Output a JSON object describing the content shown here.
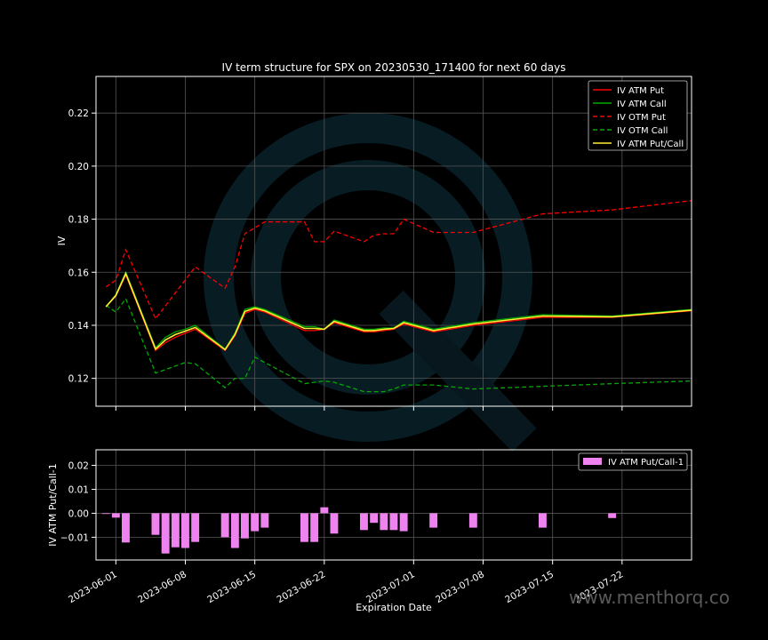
{
  "chart_data": [
    {
      "type": "line",
      "title": "IV term structure for SPX on 20230530_171400 for next 60 days",
      "xlabel": "",
      "ylabel": "IV",
      "ylim": [
        0.1095,
        0.2338
      ],
      "xlim": [
        "2023-05-30",
        "2023-07-29"
      ],
      "grid": true,
      "legend_position": "top-right",
      "y_ticks": [
        0.12,
        0.14,
        0.16,
        0.18,
        0.2,
        0.22
      ],
      "y_tick_labels": [
        "0.12",
        "0.14",
        "0.16",
        "0.18",
        "0.20",
        "0.22"
      ],
      "series": [
        {
          "name": "IV ATM Put",
          "color": "#ff0000",
          "style": "solid",
          "x": [
            "2023-05-31",
            "2023-06-01",
            "2023-06-02",
            "2023-06-05",
            "2023-06-06",
            "2023-06-07",
            "2023-06-08",
            "2023-06-09",
            "2023-06-12",
            "2023-06-13",
            "2023-06-14",
            "2023-06-15",
            "2023-06-16",
            "2023-06-20",
            "2023-06-21",
            "2023-06-22",
            "2023-06-23",
            "2023-06-26",
            "2023-06-27",
            "2023-06-28",
            "2023-06-29",
            "2023-06-30",
            "2023-07-03",
            "2023-07-07",
            "2023-07-14",
            "2023-07-21",
            "2023-07-29"
          ],
          "values": [
            0.147,
            0.151,
            0.159,
            0.1305,
            0.1335,
            0.1355,
            0.137,
            0.1385,
            0.1305,
            0.136,
            0.1445,
            0.146,
            0.145,
            0.138,
            0.138,
            0.1385,
            0.141,
            0.1375,
            0.1375,
            0.138,
            0.1385,
            0.1405,
            0.1375,
            0.14,
            0.143,
            0.143,
            0.1455
          ]
        },
        {
          "name": "IV ATM Call",
          "color": "#00aa00",
          "style": "solid",
          "x": [
            "2023-05-31",
            "2023-06-01",
            "2023-06-02",
            "2023-06-05",
            "2023-06-06",
            "2023-06-07",
            "2023-06-08",
            "2023-06-09",
            "2023-06-12",
            "2023-06-13",
            "2023-06-14",
            "2023-06-15",
            "2023-06-16",
            "2023-06-20",
            "2023-06-21",
            "2023-06-22",
            "2023-06-23",
            "2023-06-26",
            "2023-06-27",
            "2023-06-28",
            "2023-06-29",
            "2023-06-30",
            "2023-07-03",
            "2023-07-07",
            "2023-07-14",
            "2023-07-21",
            "2023-07-29"
          ],
          "values": [
            0.147,
            0.1515,
            0.16,
            0.1315,
            0.1355,
            0.1375,
            0.1385,
            0.14,
            0.131,
            0.137,
            0.146,
            0.147,
            0.146,
            0.1395,
            0.1395,
            0.1385,
            0.142,
            0.1385,
            0.1385,
            0.139,
            0.139,
            0.1415,
            0.1385,
            0.141,
            0.144,
            0.1435,
            0.146
          ]
        },
        {
          "name": "IV OTM Put",
          "color": "#ff0000",
          "style": "dashed",
          "x": [
            "2023-05-31",
            "2023-06-01",
            "2023-06-02",
            "2023-06-05",
            "2023-06-09",
            "2023-06-12",
            "2023-06-13",
            "2023-06-14",
            "2023-06-16",
            "2023-06-20",
            "2023-06-21",
            "2023-06-22",
            "2023-06-23",
            "2023-06-26",
            "2023-06-27",
            "2023-06-28",
            "2023-06-29",
            "2023-06-30",
            "2023-07-03",
            "2023-07-07",
            "2023-07-14",
            "2023-07-21",
            "2023-07-29"
          ],
          "values": [
            0.1545,
            0.157,
            0.1685,
            0.1425,
            0.162,
            0.154,
            0.162,
            0.1745,
            0.179,
            0.179,
            0.1715,
            0.1715,
            0.1755,
            0.1715,
            0.174,
            0.1745,
            0.1745,
            0.18,
            0.175,
            0.175,
            0.182,
            0.1835,
            0.187
          ]
        },
        {
          "name": "IV OTM Call",
          "color": "#00aa00",
          "style": "dashed",
          "x": [
            "2023-05-31",
            "2023-06-01",
            "2023-06-02",
            "2023-06-05",
            "2023-06-08",
            "2023-06-09",
            "2023-06-12",
            "2023-06-13",
            "2023-06-14",
            "2023-06-15",
            "2023-06-20",
            "2023-06-21",
            "2023-06-22",
            "2023-06-23",
            "2023-06-26",
            "2023-06-27",
            "2023-06-28",
            "2023-06-29",
            "2023-06-30",
            "2023-07-03",
            "2023-07-07",
            "2023-07-14",
            "2023-07-21",
            "2023-07-29"
          ],
          "values": [
            0.1475,
            0.145,
            0.15,
            0.122,
            0.126,
            0.1255,
            0.1165,
            0.12,
            0.12,
            0.128,
            0.118,
            0.1185,
            0.119,
            0.1185,
            0.115,
            0.115,
            0.115,
            0.116,
            0.1175,
            0.1175,
            0.116,
            0.117,
            0.118,
            0.119
          ]
        },
        {
          "name": "IV ATM Put/Call",
          "color": "#ffee33",
          "style": "solid",
          "x": [
            "2023-05-31",
            "2023-06-01",
            "2023-06-02",
            "2023-06-05",
            "2023-06-06",
            "2023-06-07",
            "2023-06-08",
            "2023-06-09",
            "2023-06-12",
            "2023-06-13",
            "2023-06-14",
            "2023-06-15",
            "2023-06-16",
            "2023-06-20",
            "2023-06-21",
            "2023-06-22",
            "2023-06-23",
            "2023-06-26",
            "2023-06-27",
            "2023-06-28",
            "2023-06-29",
            "2023-06-30",
            "2023-07-03",
            "2023-07-07",
            "2023-07-14",
            "2023-07-21",
            "2023-07-29"
          ],
          "values": [
            0.147,
            0.1512,
            0.1595,
            0.131,
            0.1345,
            0.1365,
            0.1378,
            0.1392,
            0.1308,
            0.1365,
            0.1452,
            0.1465,
            0.1455,
            0.1388,
            0.1388,
            0.1385,
            0.1415,
            0.138,
            0.138,
            0.1385,
            0.1388,
            0.141,
            0.138,
            0.1405,
            0.1435,
            0.1432,
            0.1457
          ]
        }
      ]
    },
    {
      "type": "bar",
      "title": "",
      "xlabel": "Expiration Date",
      "ylabel": "IV ATM Put/Call-1",
      "ylim": [
        -0.0195,
        0.0265
      ],
      "xlim": [
        "2023-05-30",
        "2023-07-29"
      ],
      "grid": true,
      "legend_position": "top-right",
      "y_ticks": [
        -0.01,
        0.0,
        0.01,
        0.02
      ],
      "y_tick_labels": [
        "−0.01",
        "0.00",
        "0.01",
        "0.02"
      ],
      "x_ticks": [
        "2023-06-01",
        "2023-06-08",
        "2023-06-15",
        "2023-06-22",
        "2023-07-01",
        "2023-07-08",
        "2023-07-15",
        "2023-07-22"
      ],
      "x_tick_labels": [
        "2023-06-01",
        "2023-06-08",
        "2023-06-15",
        "2023-06-22",
        "2023-07-01",
        "2023-07-08",
        "2023-07-15",
        "2023-07-22"
      ],
      "series": [
        {
          "name": "IV ATM Put/Call-1",
          "color": "#ee82ee",
          "x": [
            "2023-05-31",
            "2023-06-01",
            "2023-06-02",
            "2023-06-05",
            "2023-06-06",
            "2023-06-07",
            "2023-06-08",
            "2023-06-09",
            "2023-06-12",
            "2023-06-13",
            "2023-06-14",
            "2023-06-15",
            "2023-06-16",
            "2023-06-20",
            "2023-06-21",
            "2023-06-22",
            "2023-06-23",
            "2023-06-26",
            "2023-06-27",
            "2023-06-28",
            "2023-06-29",
            "2023-06-30",
            "2023-07-03",
            "2023-07-07",
            "2023-07-14",
            "2023-07-21"
          ],
          "values": [
            -0.0003,
            -0.0018,
            -0.0122,
            -0.009,
            -0.0168,
            -0.0142,
            -0.0145,
            -0.012,
            -0.01,
            -0.0145,
            -0.0105,
            -0.0075,
            -0.006,
            -0.012,
            -0.012,
            0.0025,
            -0.0085,
            -0.007,
            -0.004,
            -0.007,
            -0.007,
            -0.0075,
            -0.006,
            -0.006,
            -0.006,
            -0.002
          ]
        }
      ]
    }
  ],
  "watermark": "www.menthorq.co"
}
